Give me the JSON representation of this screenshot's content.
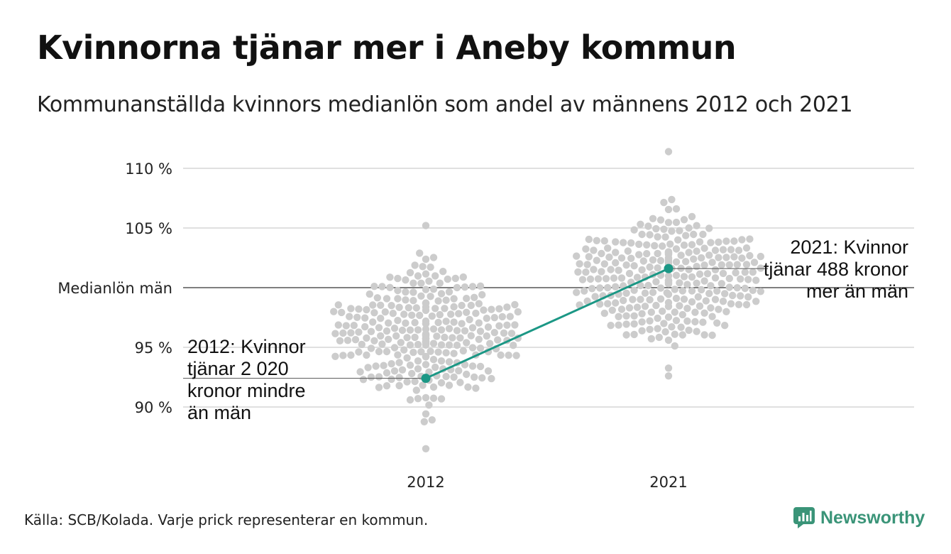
{
  "title": "Kvinnorna tjänar mer i Aneby kommun",
  "subtitle": "Kommunanställda kvinnors medianlön som andel av männens 2012 och 2021",
  "source": "Källa: SCB/Kolada. Varje prick representerar en kommun.",
  "brand": "Newsworthy",
  "colors": {
    "highlight": "#1b9785",
    "dots": "#cccccc",
    "grid": "#e0e0e0",
    "reference": "#333333",
    "brand": "#3a9478"
  },
  "chart_data": {
    "type": "scatter",
    "subtype": "beeswarm",
    "title": "Kvinnorna tjänar mer i Aneby kommun",
    "subtitle": "Kommunanställda kvinnors medianlön som andel av männens 2012 och 2021",
    "categories": [
      "2012",
      "2021"
    ],
    "y_unit": "%",
    "ylim": [
      86,
      111.5
    ],
    "y_ticks": [
      {
        "value": 90,
        "label": "90 %"
      },
      {
        "value": 95,
        "label": "95 %"
      },
      {
        "value": 100,
        "label": "Medianlön män"
      },
      {
        "value": 105,
        "label": "105 %"
      },
      {
        "value": 110,
        "label": "110 %"
      }
    ],
    "reference_line": {
      "value": 100,
      "label": "Medianlön män"
    },
    "grid": true,
    "swarm_note": "Varje prick representerar en kommun.",
    "swarm_range": {
      "2012": {
        "min": 86.5,
        "max": 105.2
      },
      "2021": {
        "min": 92.6,
        "max": 111.4
      }
    },
    "highlight": {
      "name": "Aneby",
      "values": [
        {
          "x": "2012",
          "y": 92.4
        },
        {
          "x": "2021",
          "y": 101.6
        }
      ]
    },
    "annotations": [
      {
        "x": "2012",
        "lines": [
          "2012: Kvinnor",
          "tjänar 2 020",
          "kronor mindre",
          "än män"
        ]
      },
      {
        "x": "2021",
        "lines": [
          "2021: Kvinnor",
          "tjänar 488 kronor",
          "mer än män"
        ]
      }
    ]
  }
}
